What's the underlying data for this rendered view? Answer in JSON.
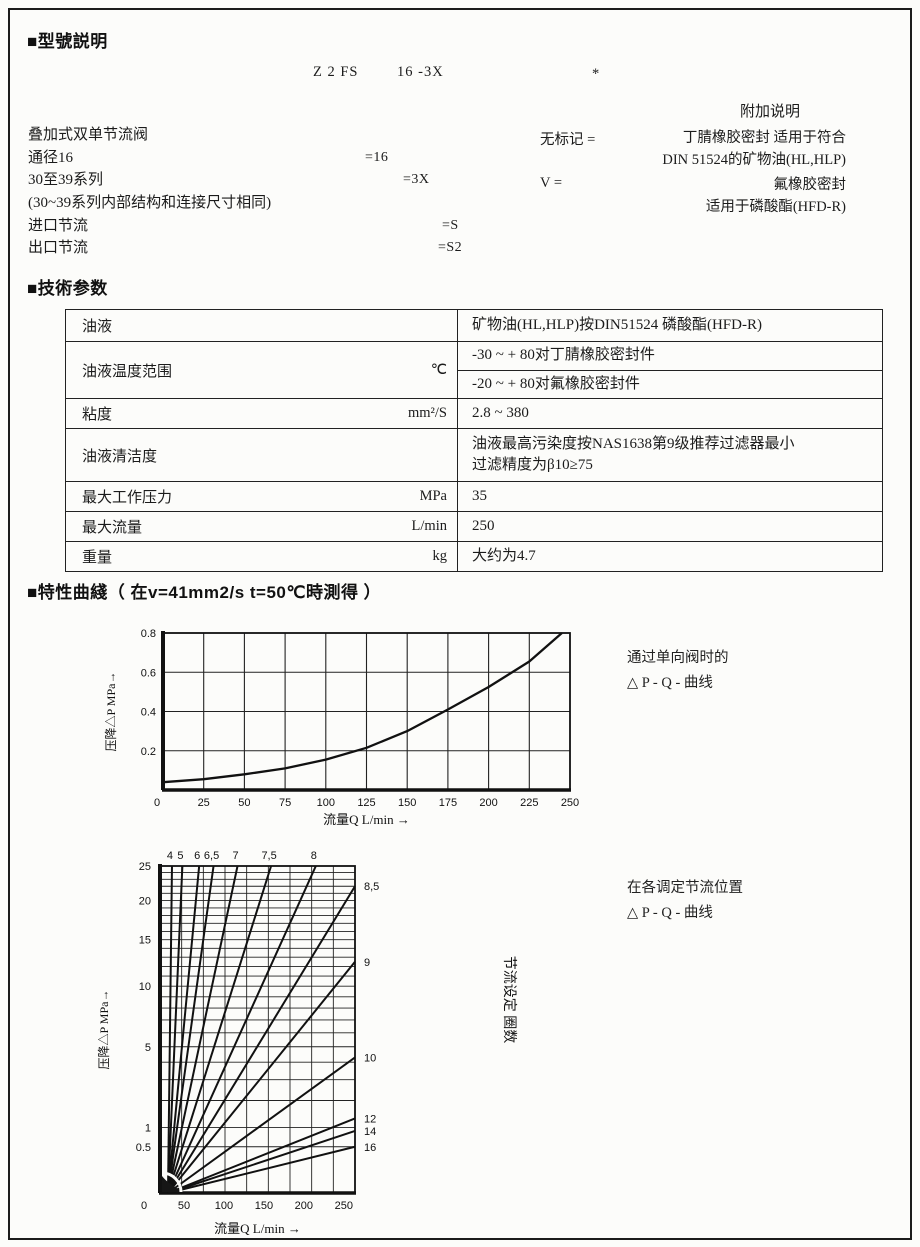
{
  "model_section": {
    "title": "■型號説明",
    "code": {
      "p1": "Z 2 FS",
      "p2": "16 -3X",
      "star": "*"
    },
    "rows": [
      {
        "label": "叠加式双单节流阀",
        "code": ""
      },
      {
        "label": "通径16",
        "code": "=16"
      },
      {
        "label": "30至39系列",
        "code": "=3X"
      },
      {
        "label": "(30~39系列内部结构和连接尺寸相同)",
        "code": ""
      },
      {
        "label": "进口节流",
        "code": "=S"
      },
      {
        "label": "出口节流",
        "code": "=S2"
      }
    ],
    "notes": {
      "title": "附加说明",
      "rows": [
        {
          "key": "无标记 =",
          "value": "丁腈橡胶密封 适用于符合\nDIN 51524的矿物油(HL,HLP)"
        },
        {
          "key": "V =",
          "value": "氟橡胶密封\n适用于磷酸酯(HFD-R)"
        }
      ]
    }
  },
  "tech_section": {
    "title": "■技術参数",
    "rows": [
      {
        "label": "油液",
        "unit": "",
        "values": [
          "矿物油(HL,HLP)按DIN51524 磷酸酯(HFD-R)"
        ]
      },
      {
        "label": "油液温度范围",
        "unit": "℃",
        "values": [
          "-30 ~ + 80对丁腈橡胶密封件",
          "-20 ~ + 80对氟橡胶密封件"
        ]
      },
      {
        "label": "粘度",
        "unit": "mm²/S",
        "values": [
          "2.8 ~ 380"
        ]
      },
      {
        "label": "油液清洁度",
        "unit": "",
        "values": [
          "油液最高污染度按NAS1638第9级推荐过滤器最小\n过滤精度为β10≥75"
        ]
      },
      {
        "label": "最大工作压力",
        "unit": "MPa",
        "values": [
          "35"
        ]
      },
      {
        "label": "最大流量",
        "unit": "L/min",
        "values": [
          "250"
        ]
      },
      {
        "label": "重量",
        "unit": "kg",
        "values": [
          "大约为4.7"
        ]
      }
    ]
  },
  "curves_section": {
    "title": "■特性曲綫（ 在v=41mm2/s t=50℃時測得 ）"
  },
  "chart_data": [
    {
      "type": "line",
      "annotation": "通过单向阀时的\n△ P - Q - 曲线",
      "xlabel": "流量Q L/min →",
      "ylabel": "压降△P MPa→",
      "xlim": [
        0,
        250
      ],
      "ylim": [
        0,
        0.8
      ],
      "xticks": [
        0,
        25,
        50,
        75,
        100,
        125,
        150,
        175,
        200,
        225,
        250
      ],
      "yticks": [
        0.2,
        0.4,
        0.6,
        0.8
      ],
      "grid": true,
      "legend": "none",
      "series": [
        {
          "name": "通过单向阀",
          "x": [
            0,
            25,
            50,
            75,
            100,
            125,
            150,
            175,
            200,
            225,
            245
          ],
          "y": [
            0.04,
            0.055,
            0.08,
            0.11,
            0.155,
            0.215,
            0.3,
            0.41,
            0.525,
            0.655,
            0.8
          ]
        }
      ]
    },
    {
      "type": "line",
      "annotation": "在各调定节流位置\n△ P - Q - 曲线",
      "xlabel": "流量Q L/min →",
      "ylabel": "压降△P MPa→",
      "ylabel_right": "节流设定 圈数",
      "y_scale": "sqrt",
      "xlim": [
        20,
        264
      ],
      "ylim": [
        0,
        25
      ],
      "xticks": [
        0,
        50,
        100,
        150,
        200,
        250
      ],
      "yticks": [
        0.5,
        1,
        5,
        10,
        15,
        20,
        25
      ],
      "grid": true,
      "legend": "labels-at-line-ends",
      "series": [
        {
          "name": "4",
          "x": [
            30,
            35
          ],
          "y": [
            0,
            25
          ]
        },
        {
          "name": "5",
          "x": [
            30,
            48
          ],
          "y": [
            0,
            25
          ]
        },
        {
          "name": "6",
          "x": [
            30,
            69
          ],
          "y": [
            0,
            25
          ]
        },
        {
          "name": "6,5",
          "x": [
            30,
            87
          ],
          "y": [
            0,
            25
          ]
        },
        {
          "name": "7",
          "x": [
            30,
            117
          ],
          "y": [
            0,
            25
          ]
        },
        {
          "name": "7,5",
          "x": [
            30,
            159
          ],
          "y": [
            0,
            25
          ]
        },
        {
          "name": "8",
          "x": [
            30,
            215
          ],
          "y": [
            0,
            25
          ]
        },
        {
          "name": "8,5",
          "x": [
            30,
            264
          ],
          "y": [
            0,
            22
          ]
        },
        {
          "name": "9",
          "x": [
            30,
            264
          ],
          "y": [
            0,
            12.5
          ]
        },
        {
          "name": "10",
          "x": [
            30,
            264
          ],
          "y": [
            0,
            4.3
          ]
        },
        {
          "name": "12",
          "x": [
            30,
            264
          ],
          "y": [
            0,
            1.3
          ]
        },
        {
          "name": "14",
          "x": [
            30,
            264
          ],
          "y": [
            0,
            0.9
          ]
        },
        {
          "name": "16",
          "x": [
            30,
            264
          ],
          "y": [
            0,
            0.5
          ]
        }
      ]
    }
  ]
}
